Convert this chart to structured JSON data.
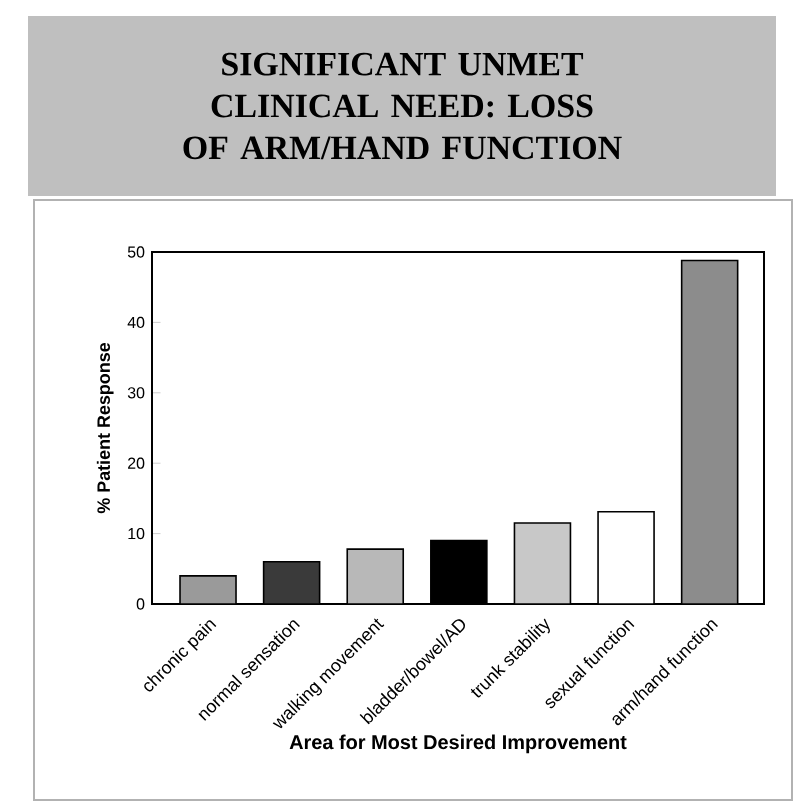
{
  "chart_data": {
    "type": "bar",
    "title": "SIGNIFICANT UNMET CLINICAL NEED: LOSS OF ARM/HAND FUNCTION",
    "xlabel": "Area for Most Desired Improvement",
    "ylabel": "% Patient Response",
    "categories": [
      "chronic pain",
      "normal sensation",
      "walking movement",
      "bladder/bowel/AD",
      "trunk stability",
      "sexual function",
      "arm/hand function"
    ],
    "values": [
      4.0,
      6.0,
      7.8,
      9.0,
      11.5,
      13.1,
      48.8
    ],
    "colors": [
      "#9a9a9a",
      "#3a3a3a",
      "#b8b8b8",
      "#000000",
      "#c8c8c8",
      "#ffffff",
      "#8c8c8c"
    ],
    "ylim": [
      0,
      50
    ],
    "yticks": [
      0,
      10,
      20,
      30,
      40,
      50
    ]
  }
}
